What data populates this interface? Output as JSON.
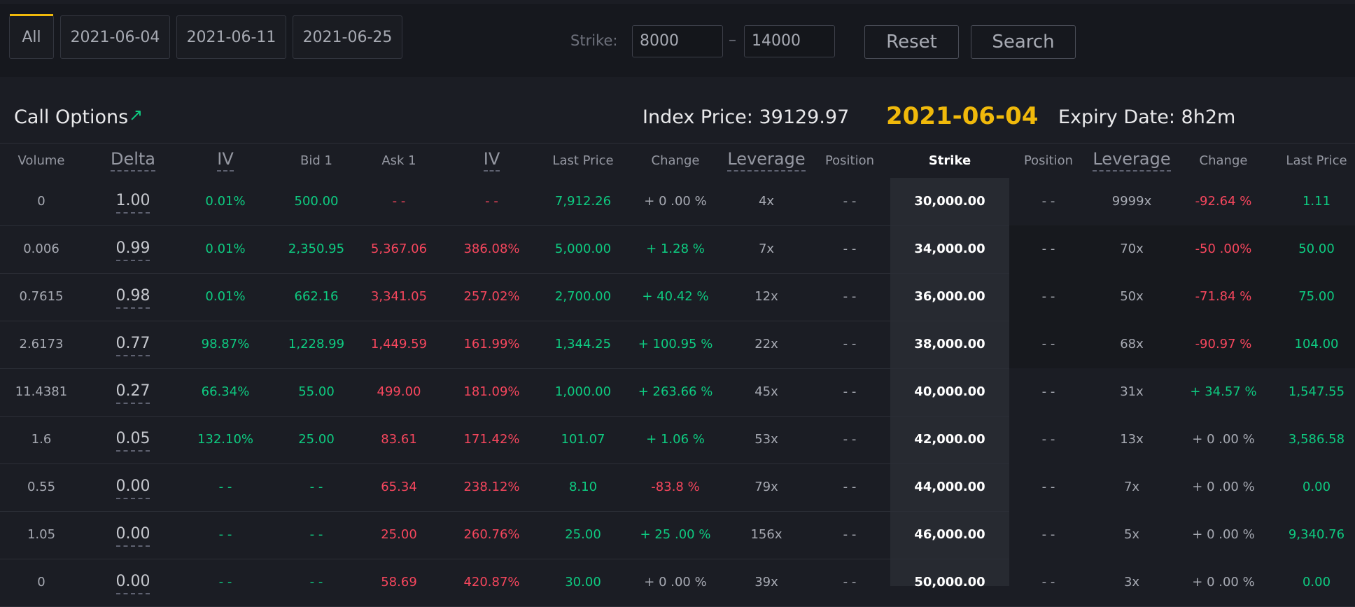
{
  "filters": {
    "tabs": [
      "All",
      "2021-06-04",
      "2021-06-11",
      "2021-06-25"
    ],
    "strike_label": "Strike:",
    "strike_min": "8000",
    "strike_sep": "–",
    "strike_max": "14000",
    "reset_label": "Reset",
    "search_label": "Search"
  },
  "header": {
    "call_title": "Call Options",
    "index_price_label": "Index Price:  39129.97",
    "expiry_date": "2021-06-04",
    "expiry_label": "Expiry Date:  8h2m"
  },
  "columns": {
    "call": [
      "Volume",
      "Delta",
      "IV",
      "Bid 1",
      "Ask 1",
      "IV",
      "Last Price",
      "Change",
      "Leverage",
      "Position"
    ],
    "strike": "Strike",
    "put": [
      "Position",
      "Leverage",
      "Change",
      "Last Price"
    ]
  },
  "rows": [
    {
      "volume": "0",
      "delta": "1.00",
      "iv_bid": "0.01%",
      "bid": "500.00",
      "ask": "- -",
      "iv_ask": "- -",
      "last": "7,912.26",
      "change": "+ 0 .00 %",
      "leverage": "4x",
      "position": "- -",
      "strike": "30,000.00",
      "put_position": "- -",
      "put_leverage": "9999x",
      "put_change": "-92.64 %",
      "put_last": "1.11"
    },
    {
      "volume": "0.006",
      "delta": "0.99",
      "iv_bid": "0.01%",
      "bid": "2,350.95",
      "ask": "5,367.06",
      "iv_ask": "386.08%",
      "last": "5,000.00",
      "change": "+ 1.28 %",
      "leverage": "7x",
      "position": "- -",
      "strike": "34,000.00",
      "put_position": "- -",
      "put_leverage": "70x",
      "put_change": "-50 .00%",
      "put_last": "50.00"
    },
    {
      "volume": "0.7615",
      "delta": "0.98",
      "iv_bid": "0.01%",
      "bid": "662.16",
      "ask": "3,341.05",
      "iv_ask": "257.02%",
      "last": "2,700.00",
      "change": "+ 40.42 %",
      "leverage": "12x",
      "position": "- -",
      "strike": "36,000.00",
      "put_position": "- -",
      "put_leverage": "50x",
      "put_change": "-71.84 %",
      "put_last": "75.00"
    },
    {
      "volume": "2.6173",
      "delta": "0.77",
      "iv_bid": "98.87%",
      "bid": "1,228.99",
      "ask": "1,449.59",
      "iv_ask": "161.99%",
      "last": "1,344.25",
      "change": "+ 100.95 %",
      "leverage": "22x",
      "position": "- -",
      "strike": "38,000.00",
      "put_position": "- -",
      "put_leverage": "68x",
      "put_change": "-90.97 %",
      "put_last": "104.00"
    },
    {
      "volume": "11.4381",
      "delta": "0.27",
      "iv_bid": "66.34%",
      "bid": "55.00",
      "ask": "499.00",
      "iv_ask": "181.09%",
      "last": "1,000.00",
      "change": "+ 263.66 %",
      "leverage": "45x",
      "position": "- -",
      "strike": "40,000.00",
      "put_position": "- -",
      "put_leverage": "31x",
      "put_change": "+ 34.57 %",
      "put_last": "1,547.55"
    },
    {
      "volume": "1.6",
      "delta": "0.05",
      "iv_bid": "132.10%",
      "bid": "25.00",
      "ask": "83.61",
      "iv_ask": "171.42%",
      "last": "101.07",
      "change": "+ 1.06 %",
      "leverage": "53x",
      "position": "- -",
      "strike": "42,000.00",
      "put_position": "- -",
      "put_leverage": "13x",
      "put_change": "+ 0 .00 %",
      "put_last": "3,586.58"
    },
    {
      "volume": "0.55",
      "delta": "0.00",
      "iv_bid": "- -",
      "bid": "- -",
      "ask": "65.34",
      "iv_ask": "238.12%",
      "last": "8.10",
      "change": "-83.8 %",
      "leverage": "79x",
      "position": "- -",
      "strike": "44,000.00",
      "put_position": "- -",
      "put_leverage": "7x",
      "put_change": "+ 0 .00 %",
      "put_last": "0.00"
    },
    {
      "volume": "1.05",
      "delta": "0.00",
      "iv_bid": "- -",
      "bid": "- -",
      "ask": "25.00",
      "iv_ask": "260.76%",
      "last": "25.00",
      "change": "+ 25 .00 %",
      "leverage": "156x",
      "position": "- -",
      "strike": "46,000.00",
      "put_position": "- -",
      "put_leverage": "5x",
      "put_change": "+ 0 .00 %",
      "put_last": "9,340.76"
    },
    {
      "volume": "0",
      "delta": "0.00",
      "iv_bid": "- -",
      "bid": "- -",
      "ask": "58.69",
      "iv_ask": "420.87%",
      "last": "30.00",
      "change": "+ 0 .00 %",
      "leverage": "39x",
      "position": "- -",
      "strike": "50,000.00",
      "put_position": "- -",
      "put_leverage": "3x",
      "put_change": "+ 0 .00 %",
      "put_last": "0.00"
    }
  ],
  "colors": {
    "accent": "#f0b90b",
    "positive": "#0ecb81",
    "negative": "#f6465d"
  }
}
